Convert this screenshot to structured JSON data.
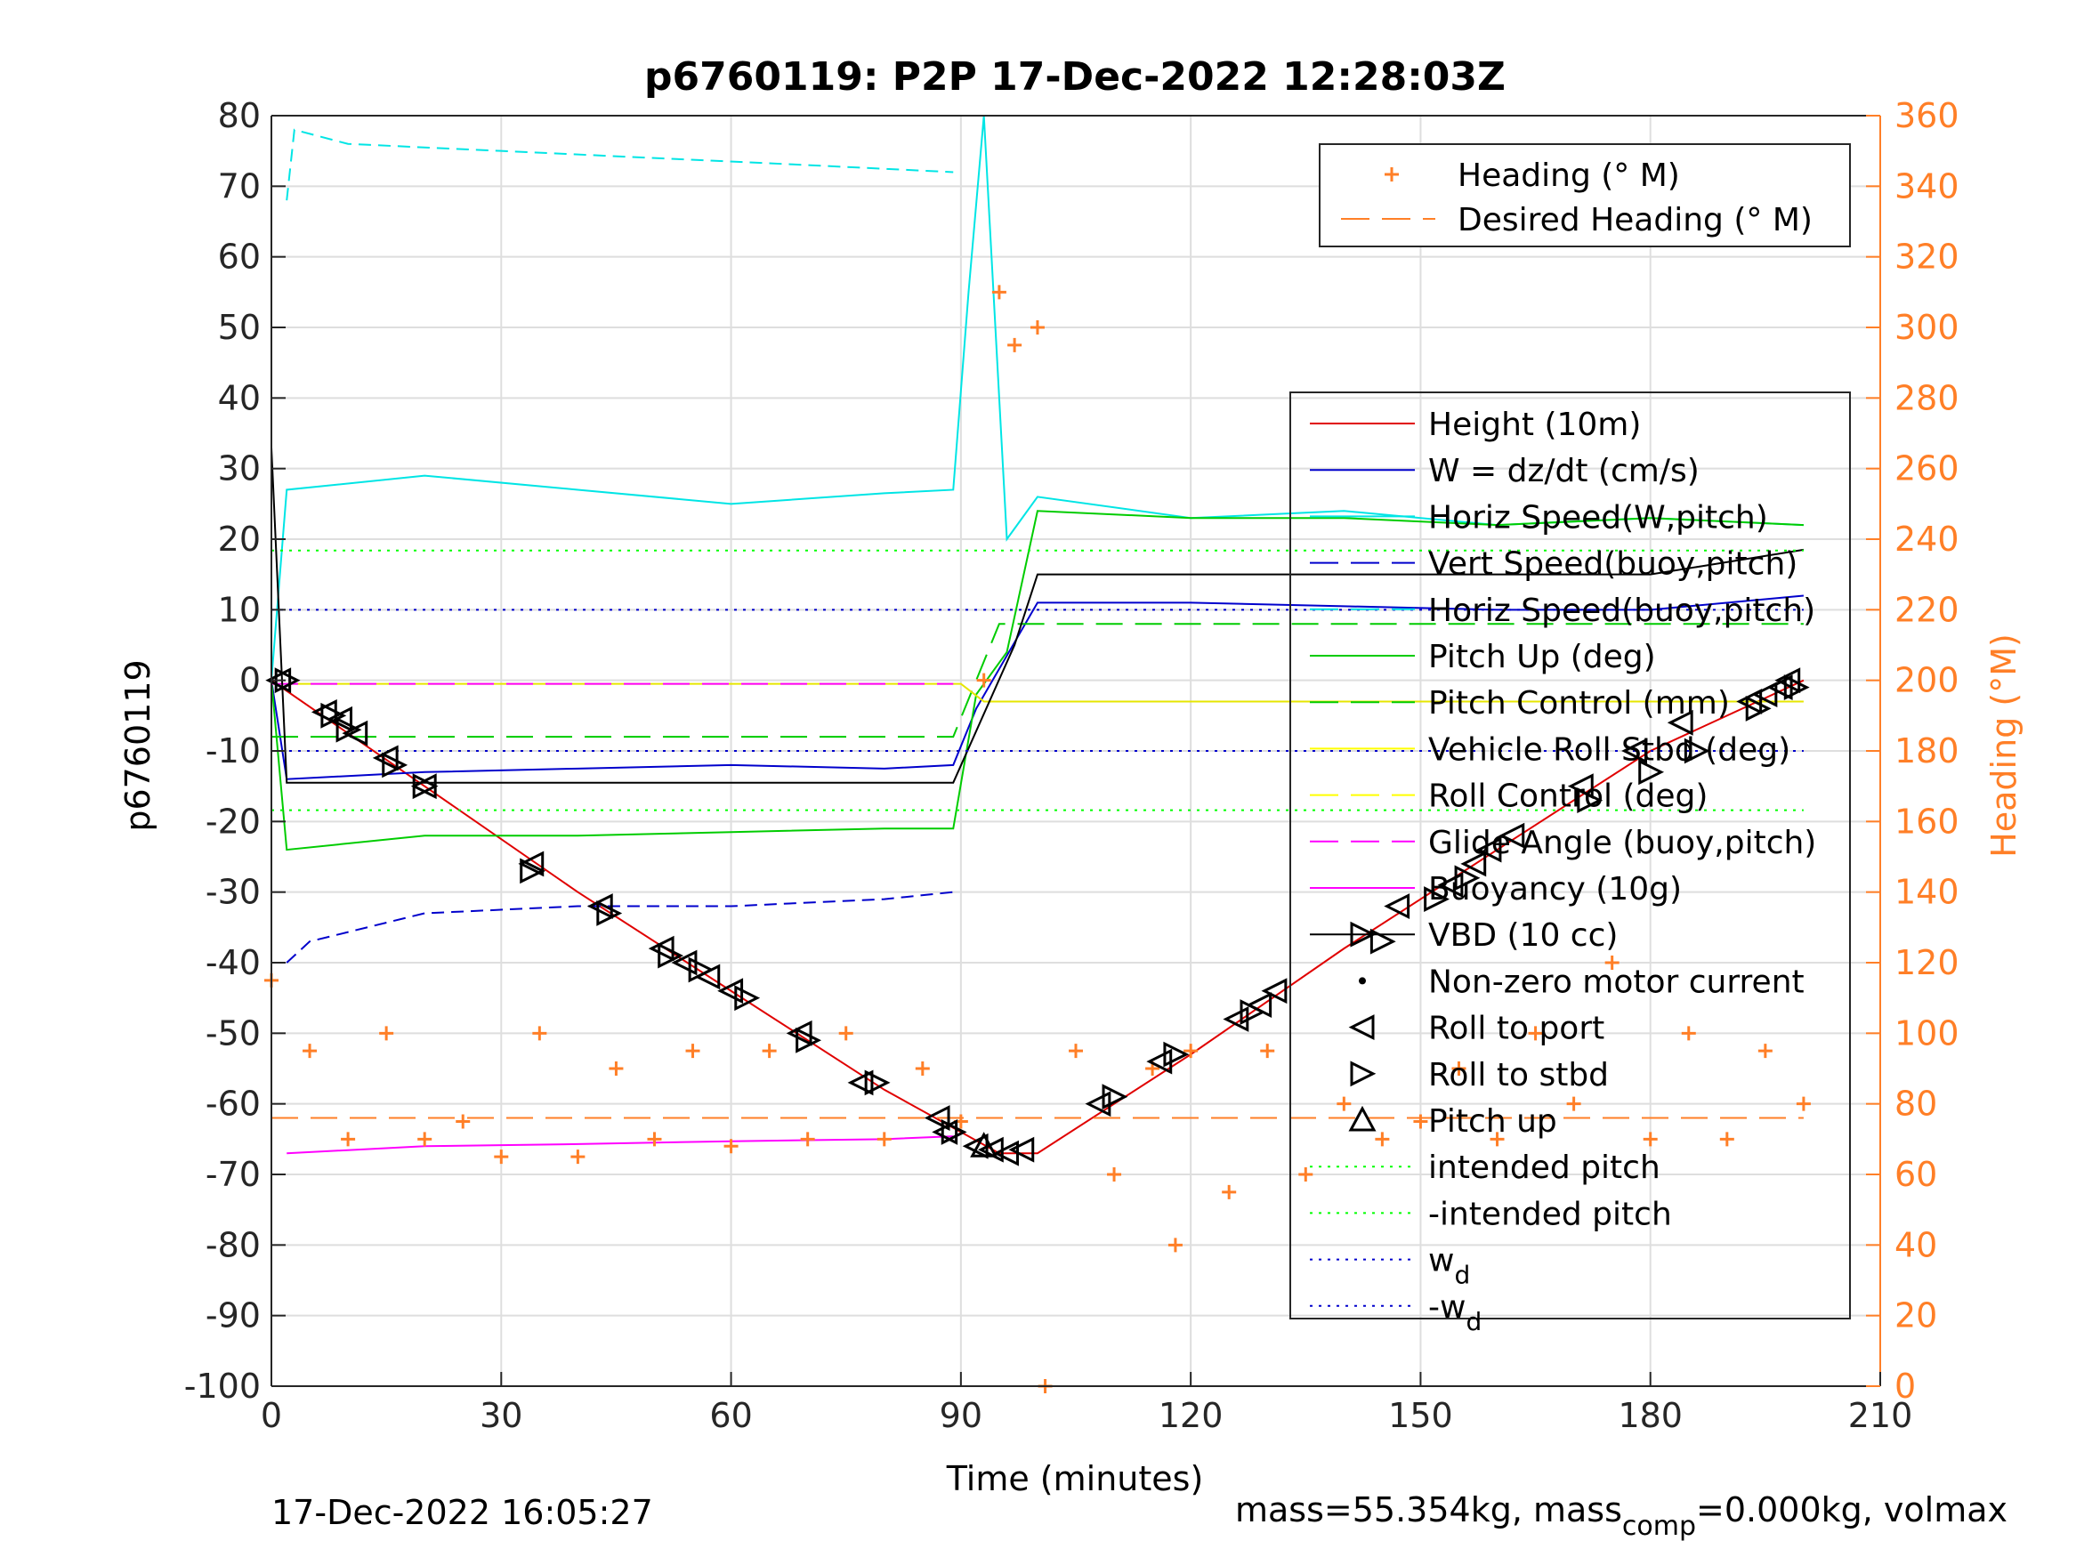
{
  "chart_data": {
    "type": "line",
    "title": "p6760119: P2P 17-Dec-2022 12:28:03Z",
    "xlabel": "Time (minutes)",
    "ylabel_left": "p6760119",
    "ylabel_right": "Heading (°M)",
    "xlim": [
      0,
      210
    ],
    "ylim_left": [
      -100,
      80
    ],
    "ylim_right": [
      0,
      360
    ],
    "xticks": [
      "0",
      "30",
      "60",
      "90",
      "120",
      "150",
      "180",
      "210"
    ],
    "yticks_left": [
      "80",
      "70",
      "60",
      "50",
      "40",
      "30",
      "20",
      "10",
      "0",
      "-10",
      "-20",
      "-30",
      "-40",
      "-50",
      "-60",
      "-70",
      "-80",
      "-90",
      "-100"
    ],
    "yticks_right": [
      "360",
      "340",
      "320",
      "300",
      "280",
      "260",
      "240",
      "220",
      "200",
      "180",
      "160",
      "140",
      "120",
      "100",
      "80",
      "60",
      "40",
      "20",
      "0"
    ],
    "grid": true,
    "legend_right_axis": [
      {
        "label": "Heading (° M)",
        "color": "#ff7f27",
        "style": "plus"
      },
      {
        "label": "Desired Heading (° M)",
        "color": "#ff7f27",
        "style": "dash"
      }
    ],
    "legend_left_axis": [
      {
        "label": "Height (10m)",
        "color": "#e00000",
        "style": "solid"
      },
      {
        "label": "W = dz/dt (cm/s)",
        "color": "#0000cc",
        "style": "solid"
      },
      {
        "label": "Horiz Speed(W,pitch)",
        "color": "#00e5e5",
        "style": "solid"
      },
      {
        "label": "Vert Speed(buoy,pitch)",
        "color": "#0000cc",
        "style": "dash"
      },
      {
        "label": "Horiz Speed(buoy,pitch)",
        "color": "#00e5e5",
        "style": "dash"
      },
      {
        "label": "Pitch Up (deg)",
        "color": "#00cc00",
        "style": "solid"
      },
      {
        "label": "Pitch Control (mm)",
        "color": "#00cc00",
        "style": "dash"
      },
      {
        "label": "Vehicle Roll Stbd (deg)",
        "color": "#ffff00",
        "style": "solid"
      },
      {
        "label": "Roll Control (deg)",
        "color": "#ffff00",
        "style": "dash"
      },
      {
        "label": "Glide Angle (buoy,pitch)",
        "color": "#ff00ff",
        "style": "dash"
      },
      {
        "label": "Buoyancy (10g)",
        "color": "#ff00ff",
        "style": "solid"
      },
      {
        "label": "VBD (10 cc)",
        "color": "#000000",
        "style": "solid"
      },
      {
        "label": "Non-zero motor current",
        "color": "#000000",
        "style": "dot"
      },
      {
        "label": "Roll to port",
        "color": "#000000",
        "style": "tri-left"
      },
      {
        "label": "Roll to stbd",
        "color": "#000000",
        "style": "tri-right"
      },
      {
        "label": "Pitch up",
        "color": "#000000",
        "style": "tri-up"
      },
      {
        "label": "intended pitch",
        "color": "#00ff00",
        "style": "dotted"
      },
      {
        "label": "-intended pitch",
        "color": "#00ff00",
        "style": "dotted"
      },
      {
        "label": "w",
        "sub": "d",
        "color": "#0000cc",
        "style": "dotted"
      },
      {
        "label": "-w",
        "sub": "d",
        "color": "#0000cc",
        "style": "dotted"
      }
    ],
    "series": [
      {
        "name": "Height (10m)",
        "x": [
          0,
          20,
          40,
          60,
          80,
          90,
          95,
          100,
          120,
          140,
          160,
          180,
          200
        ],
        "y": [
          0,
          -15,
          -30,
          -44,
          -58,
          -64,
          -67,
          -67,
          -53,
          -38,
          -24,
          -10,
          0
        ]
      },
      {
        "name": "W = dz/dt (cm/s)",
        "x": [
          0,
          2,
          20,
          40,
          60,
          80,
          89,
          92,
          100,
          120,
          140,
          160,
          180,
          200
        ],
        "y": [
          0,
          -14,
          -13,
          -12.5,
          -12,
          -12.5,
          -12,
          -4,
          11,
          11,
          10.5,
          10,
          10,
          12
        ]
      },
      {
        "name": "Horiz Speed(W,pitch)",
        "x": [
          0,
          2,
          20,
          40,
          60,
          80,
          89,
          91,
          93,
          96,
          100,
          120,
          140,
          160,
          180,
          200
        ],
        "y": [
          0,
          27,
          29,
          27,
          25,
          26.5,
          27,
          55,
          80,
          20,
          26,
          23,
          24,
          22,
          23,
          22
        ]
      },
      {
        "name": "Vert Speed(buoy,pitch)",
        "x": [
          2,
          5,
          20,
          40,
          60,
          80,
          89
        ],
        "y": [
          -40,
          -37,
          -33,
          -32,
          -32,
          -31,
          -30
        ]
      },
      {
        "name": "Horiz Speed(buoy,pitch)",
        "x": [
          2,
          3,
          10,
          30,
          50,
          70,
          89
        ],
        "y": [
          68,
          78,
          76,
          75,
          74,
          73,
          72
        ]
      },
      {
        "name": "Pitch Up (deg)",
        "x": [
          0,
          2,
          20,
          40,
          60,
          80,
          89,
          92,
          96,
          100,
          120,
          140,
          160,
          180,
          200
        ],
        "y": [
          0,
          -24,
          -22,
          -22,
          -21.5,
          -21,
          -21,
          -2,
          4,
          24,
          23,
          23,
          22,
          23,
          22
        ]
      },
      {
        "name": "Pitch Control (mm)",
        "x": [
          0,
          89,
          95,
          200
        ],
        "y": [
          -8,
          -8,
          8,
          8
        ]
      },
      {
        "name": "Roll Control (deg)",
        "x": [
          0,
          90,
          93,
          200
        ],
        "y": [
          -0.5,
          -0.5,
          -3,
          -3
        ]
      },
      {
        "name": "Glide Angle (buoy,pitch)",
        "x": [
          0,
          89
        ],
        "y": [
          -0.5,
          -0.5
        ]
      },
      {
        "name": "Buoyancy (10g)",
        "x": [
          2,
          20,
          40,
          60,
          80,
          89
        ],
        "y": [
          -67,
          -66,
          -65.7,
          -65.3,
          -65,
          -64.6
        ]
      },
      {
        "name": "VBD (10 cc)",
        "x": [
          0,
          2,
          89,
          97,
          100,
          140,
          180,
          200
        ],
        "y": [
          33,
          -14.5,
          -14.5,
          5,
          15,
          15,
          15,
          18.5
        ]
      },
      {
        "name": "intended pitch",
        "x": [
          0,
          200
        ],
        "y": [
          18.4,
          18.4
        ]
      },
      {
        "name": "-intended pitch",
        "x": [
          0,
          200
        ],
        "y": [
          -18.4,
          -18.4
        ]
      },
      {
        "name": "w_d",
        "x": [
          0,
          200
        ],
        "y": [
          10,
          10
        ]
      },
      {
        "name": "-w_d",
        "x": [
          0,
          200
        ],
        "y": [
          -10,
          -10
        ]
      },
      {
        "name": "Heading (° M)",
        "axis": "right",
        "x": [
          0,
          5,
          10,
          15,
          20,
          25,
          30,
          35,
          40,
          45,
          50,
          55,
          60,
          65,
          70,
          75,
          80,
          85,
          90,
          93,
          95,
          97,
          100,
          101,
          105,
          110,
          115,
          118,
          120,
          125,
          130,
          135,
          140,
          145,
          150,
          155,
          160,
          165,
          170,
          175,
          180,
          185,
          190,
          195,
          200
        ],
        "y": [
          115,
          95,
          70,
          100,
          70,
          75,
          65,
          100,
          65,
          90,
          70,
          95,
          68,
          95,
          70,
          100,
          70,
          90,
          75,
          200,
          310,
          295,
          300,
          0,
          95,
          60,
          90,
          40,
          95,
          55,
          95,
          60,
          80,
          70,
          75,
          90,
          70,
          100,
          80,
          120,
          70,
          100,
          70,
          95,
          80
        ]
      },
      {
        "name": "Desired Heading (° M)",
        "axis": "right",
        "x": [
          0,
          200
        ],
        "y": [
          76,
          76
        ]
      }
    ],
    "markers": {
      "roll_to_port": {
        "x": [
          1,
          7,
          9,
          11,
          15,
          20,
          34,
          43,
          51,
          54,
          57,
          60,
          69,
          77,
          87,
          88,
          92,
          94,
          96,
          98,
          108,
          116,
          126,
          129,
          131,
          147,
          154,
          157,
          159,
          162,
          171,
          178,
          184,
          193,
          195,
          197,
          198
        ],
        "y": [
          0,
          -4.5,
          -5.5,
          -7.5,
          -11,
          -15,
          -26,
          -32,
          -38,
          -40,
          -42,
          -44,
          -50,
          -57,
          -62,
          -64,
          -66,
          -66.5,
          -67,
          -66.5,
          -60,
          -54,
          -48,
          -46,
          -44,
          -32,
          -29,
          -26,
          -24,
          -22,
          -15,
          -10,
          -6,
          -3,
          -2,
          -1,
          0
        ]
      },
      "roll_to_stbd": {
        "x": [
          2,
          8,
          10,
          16,
          20,
          34,
          44,
          52,
          56,
          62,
          70,
          79,
          89,
          110,
          118,
          128,
          145,
          152,
          156,
          172,
          180,
          186,
          194,
          199
        ],
        "y": [
          0,
          -5,
          -7,
          -12,
          -15,
          -27,
          -33,
          -39,
          -41,
          -45,
          -51,
          -57,
          -64,
          -59,
          -53,
          -47,
          -37,
          -31,
          -28,
          -17,
          -13,
          -10,
          -4,
          -1
        ]
      },
      "pitch_up": {
        "x": [
          93
        ],
        "y": [
          -66
        ]
      }
    },
    "annotations": {
      "timestamp": "17-Dec-2022 16:05:27",
      "footer_a": "mass=55.354kg, mass",
      "footer_sub": "comp",
      "footer_b": "=0.000kg, volmax"
    },
    "colors": {
      "height": "#e00000",
      "w": "#0000cc",
      "horiz": "#00e5e5",
      "pitch": "#00cc00",
      "roll": "#ffff00",
      "buoy": "#ff00ff",
      "heading": "#ff7f27",
      "axis_right": "#ff7f27"
    }
  }
}
